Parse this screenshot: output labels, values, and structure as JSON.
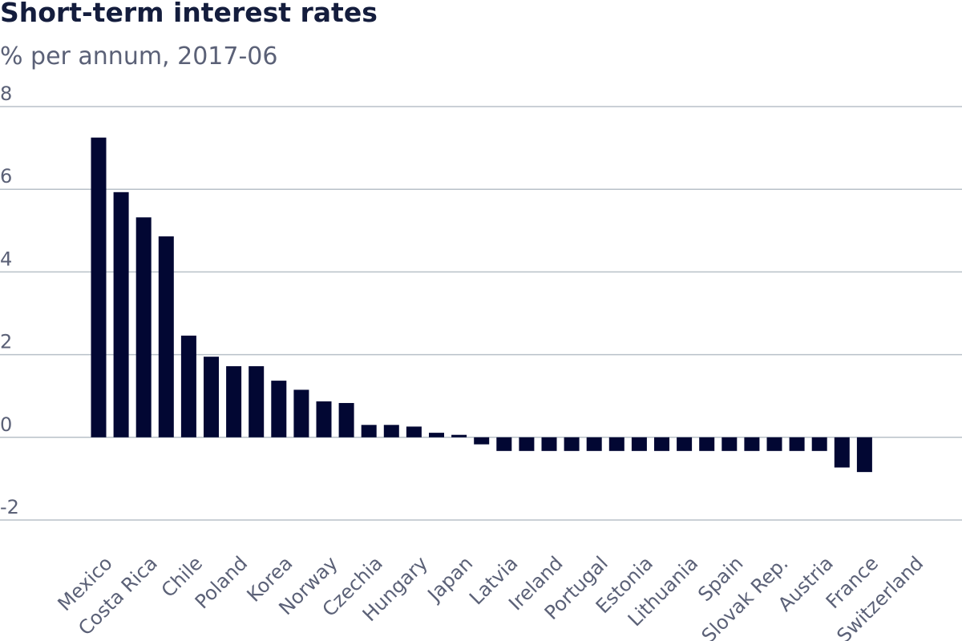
{
  "colors": {
    "bar": "#020733",
    "title": "#141d3d",
    "text_muted": "#5b6177",
    "grid": "#b8c0c8"
  },
  "chart_data": {
    "type": "bar",
    "title": "Short-term interest rates",
    "subtitle": "% per annum, 2017-06",
    "xlabel": "",
    "ylabel": "",
    "ylim": [
      -2,
      8
    ],
    "yticks": [
      8,
      6,
      4,
      2,
      0,
      -2
    ],
    "ytick_labels": [
      "8",
      "6",
      "4",
      "2",
      "0",
      "-2"
    ],
    "grid": true,
    "legend": "none",
    "labeled_categories": [
      "Mexico",
      "Costa Rica",
      "Chile",
      "Poland",
      "Korea",
      "Norway",
      "Czechia",
      "Hungary",
      "Japan",
      "Latvia",
      "Ireland",
      "Portugal",
      "Estonia",
      "Lithuania",
      "Spain",
      "Slovak Rep.",
      "Austria",
      "France",
      "Switzerland"
    ],
    "series": [
      {
        "values": [
          7.25,
          5.93,
          5.32,
          4.86,
          2.46,
          1.95,
          1.72,
          1.72,
          1.37,
          1.15,
          0.87,
          0.83,
          0.3,
          0.3,
          0.26,
          0.11,
          0.06,
          -0.17,
          -0.33,
          -0.33,
          -0.33,
          -0.33,
          -0.33,
          -0.33,
          -0.33,
          -0.33,
          -0.33,
          -0.33,
          -0.33,
          -0.33,
          -0.33,
          -0.33,
          -0.33,
          -0.73,
          -0.84
        ]
      }
    ]
  }
}
